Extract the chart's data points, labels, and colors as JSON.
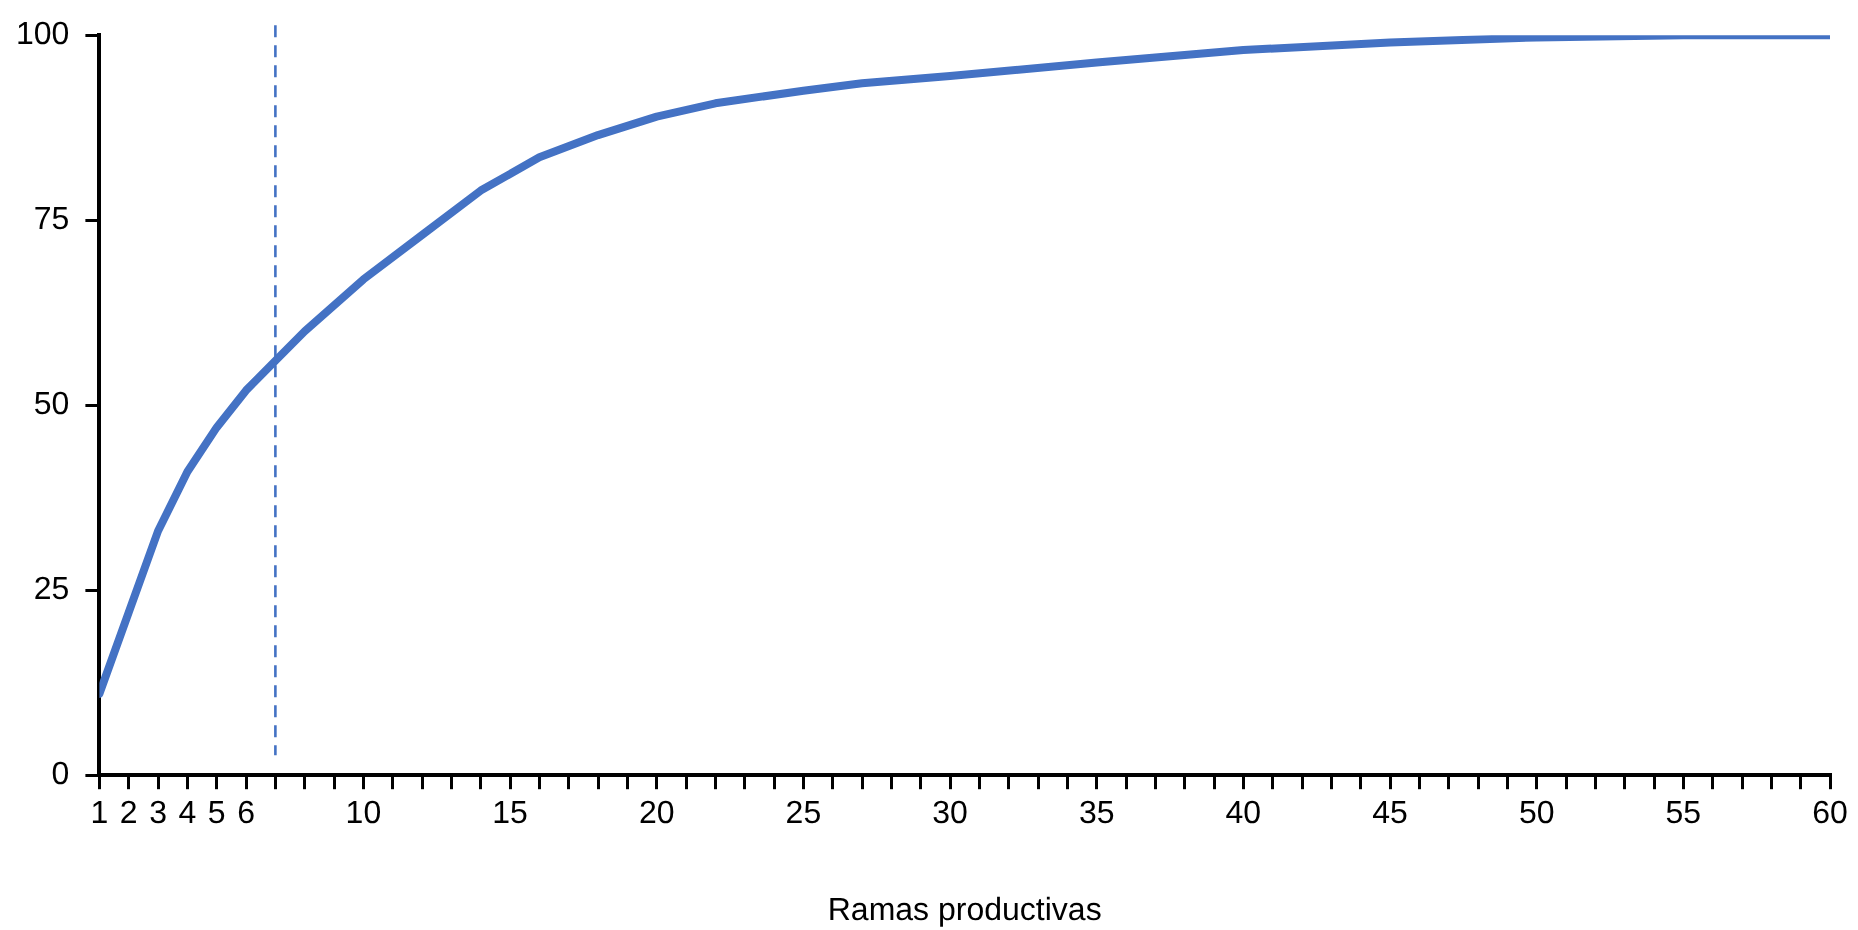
{
  "chart_data": {
    "type": "line",
    "xlabel": "Ramas productivas",
    "x": [
      1,
      2,
      3,
      4,
      5,
      6,
      7,
      8,
      10,
      12,
      14,
      16,
      18,
      20,
      22,
      25,
      27,
      30,
      35,
      40,
      45,
      50,
      55,
      60
    ],
    "series": [
      {
        "color": "#4472c4",
        "values": [
          11,
          22,
          33,
          41,
          47,
          52,
          56,
          60,
          67,
          73,
          79,
          83.5,
          86.5,
          89,
          90.8,
          92.5,
          93.5,
          94.5,
          96.3,
          98,
          99,
          99.7,
          100,
          100
        ]
      }
    ],
    "xlim": [
      1,
      60
    ],
    "xticks": [
      1,
      2,
      3,
      4,
      5,
      6,
      {
        "value": 7,
        "label": null
      },
      {
        "value": 8,
        "label": null
      },
      {
        "value": 9,
        "label": null
      },
      10,
      {
        "value": 11,
        "label": null
      },
      {
        "value": 12,
        "label": null
      },
      {
        "value": 13,
        "label": null
      },
      {
        "value": 14,
        "label": null
      },
      15,
      {
        "value": 16,
        "label": null
      },
      {
        "value": 17,
        "label": null
      },
      {
        "value": 18,
        "label": null
      },
      {
        "value": 19,
        "label": null
      },
      20,
      {
        "value": 21,
        "label": null
      },
      {
        "value": 22,
        "label": null
      },
      {
        "value": 23,
        "label": null
      },
      {
        "value": 24,
        "label": null
      },
      25,
      {
        "value": 26,
        "label": null
      },
      {
        "value": 27,
        "label": null
      },
      {
        "value": 28,
        "label": null
      },
      {
        "value": 29,
        "label": null
      },
      30,
      {
        "value": 31,
        "label": null
      },
      {
        "value": 32,
        "label": null
      },
      {
        "value": 33,
        "label": null
      },
      {
        "value": 34,
        "label": null
      },
      35,
      {
        "value": 36,
        "label": null
      },
      {
        "value": 37,
        "label": null
      },
      {
        "value": 38,
        "label": null
      },
      {
        "value": 39,
        "label": null
      },
      40,
      {
        "value": 41,
        "label": null
      },
      {
        "value": 42,
        "label": null
      },
      {
        "value": 43,
        "label": null
      },
      {
        "value": 44,
        "label": null
      },
      45,
      {
        "value": 46,
        "label": null
      },
      {
        "value": 47,
        "label": null
      },
      {
        "value": 48,
        "label": null
      },
      {
        "value": 49,
        "label": null
      },
      50,
      {
        "value": 51,
        "label": null
      },
      {
        "value": 52,
        "label": null
      },
      {
        "value": 53,
        "label": null
      },
      {
        "value": 54,
        "label": null
      },
      55,
      {
        "value": 56,
        "label": null
      },
      {
        "value": 57,
        "label": null
      },
      {
        "value": 58,
        "label": null
      },
      {
        "value": 59,
        "label": null
      },
      60
    ],
    "ylim": [
      0,
      100
    ],
    "yticks": [
      0,
      25,
      50,
      75,
      100
    ],
    "ref_lines": [
      {
        "axis": "x",
        "value": 7,
        "color": "#4472c4",
        "line_style": "dashed"
      }
    ],
    "grid": false,
    "legend": false,
    "marker": "none",
    "line_style": "solid"
  }
}
